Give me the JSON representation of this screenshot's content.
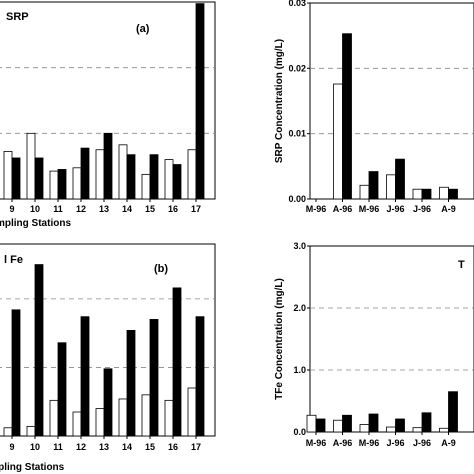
{
  "chart_data": [
    {
      "panel_id": "top-left",
      "type": "bar",
      "title": "SRP",
      "panel_label": "(a)",
      "xlabel": "mpling Stations",
      "categories": [
        "9",
        "10",
        "11",
        "12",
        "13",
        "14",
        "15",
        "16",
        "17"
      ],
      "series": [
        {
          "name": "",
          "values": [
            1.45,
            2.0,
            0.85,
            0.95,
            1.5,
            1.65,
            0.75,
            1.2,
            1.5
          ]
        },
        {
          "name": "",
          "values": [
            1.25,
            1.25,
            0.9,
            1.55,
            2.0,
            1.35,
            1.35,
            1.05,
            5.95
          ]
        }
      ],
      "ylim": [
        0,
        6
      ],
      "grid": "dashed"
    },
    {
      "panel_id": "top-right",
      "type": "bar",
      "ylabel": "SRP Concentration (mg/L)",
      "categories": [
        "M-96",
        "A-96",
        "M-96",
        "J-96",
        "J-96",
        "A-9"
      ],
      "series": [
        {
          "name": "",
          "values": [
            0,
            0.0176,
            0.0021,
            0.0037,
            0.0015,
            0.0018
          ]
        },
        {
          "name": "",
          "values": [
            0,
            0.0253,
            0.0042,
            0.0061,
            0.0015,
            0.0015
          ]
        }
      ],
      "yticks": [
        "0.00",
        "0.01",
        "0.02",
        "0.03"
      ],
      "ylim": [
        0,
        0.03
      ],
      "grid": "dashed"
    },
    {
      "panel_id": "bottom-left",
      "type": "bar",
      "title": "l Fe",
      "panel_label": "(b)",
      "xlabel": "upling Stations",
      "categories": [
        "9",
        "10",
        "11",
        "12",
        "13",
        "14",
        "15",
        "16",
        "17"
      ],
      "series": [
        {
          "name": "",
          "values": [
            0.6,
            0.7,
            2.6,
            1.75,
            2.0,
            2.7,
            3.0,
            2.6,
            3.5
          ]
        },
        {
          "name": "",
          "values": [
            9.2,
            12.5,
            6.8,
            8.7,
            4.9,
            7.7,
            8.5,
            10.8,
            8.7
          ]
        }
      ],
      "ylim": [
        0,
        14
      ],
      "grid": "dashed"
    },
    {
      "panel_id": "bottom-right",
      "type": "bar",
      "title": "T",
      "ylabel": "TFe Concentration (mg/L)",
      "categories": [
        "M-96",
        "A-96",
        "M-96",
        "J-96",
        "J-96",
        "A-9"
      ],
      "series": [
        {
          "name": "",
          "values": [
            0.27,
            0.19,
            0.12,
            0.08,
            0.07,
            0.06
          ]
        },
        {
          "name": "",
          "values": [
            0.21,
            0.27,
            0.29,
            0.21,
            0.31,
            0.65
          ]
        }
      ],
      "yticks": [
        "0.0",
        "1.0",
        "2.0",
        "3.0"
      ],
      "ylim": [
        0,
        3
      ],
      "grid": "dashed"
    }
  ]
}
